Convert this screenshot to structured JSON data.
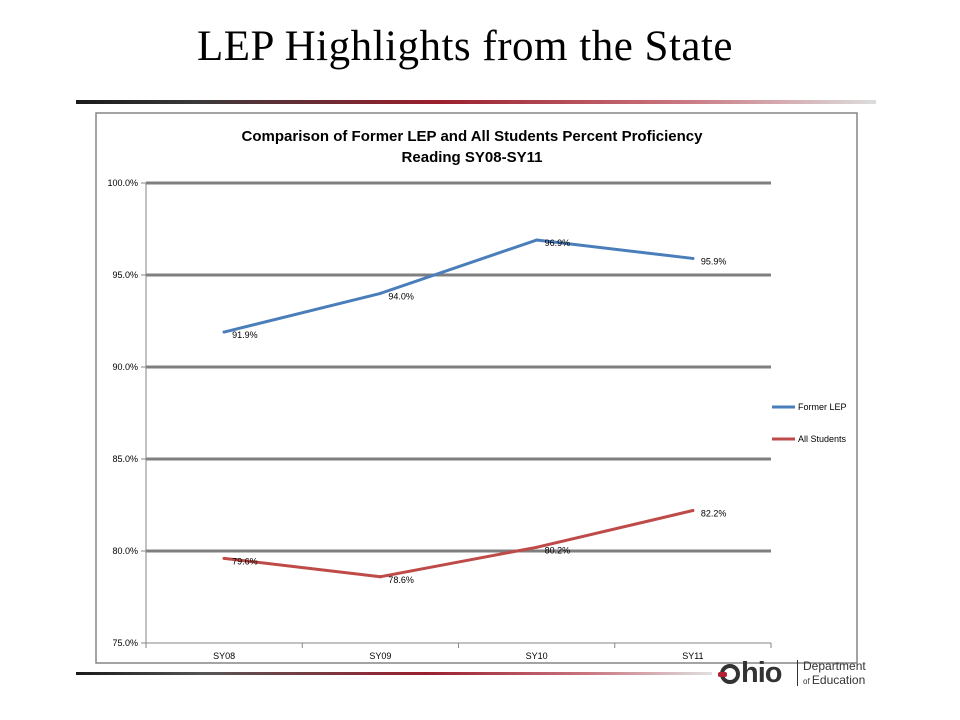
{
  "slide": {
    "title": "LEP Highlights from the State"
  },
  "logo": {
    "wordmark": "hio",
    "line1": "Department",
    "line2_small": "of ",
    "line2": "Education",
    "brand_red": "#b22234",
    "icon": "ohio-logo-icon"
  },
  "chart_data": {
    "type": "line",
    "title": "Comparison of Former LEP and All Students Percent Proficiency",
    "subtitle": "Reading  SY08-SY11",
    "categories": [
      "SY08",
      "SY09",
      "SY10",
      "SY11"
    ],
    "series": [
      {
        "name": "Former LEP",
        "values": [
          91.9,
          94.0,
          96.9,
          95.9
        ],
        "labels": [
          "91.9%",
          "94.0%",
          "96.9%",
          "95.9%"
        ],
        "color": "#4a7ebb"
      },
      {
        "name": "All Students",
        "values": [
          79.6,
          78.6,
          80.2,
          82.2
        ],
        "labels": [
          "79.6%",
          "78.6%",
          "80.2%",
          "82.2%"
        ],
        "color": "#be4b48"
      }
    ],
    "ylim": [
      75,
      100
    ],
    "yticks": [
      "100.0%",
      "95.0%",
      "90.0%",
      "85.0%",
      "80.0%",
      "75.0%"
    ],
    "ytick_values": [
      100,
      95,
      90,
      85,
      80,
      75
    ],
    "grid": true,
    "legend_position": "right"
  }
}
